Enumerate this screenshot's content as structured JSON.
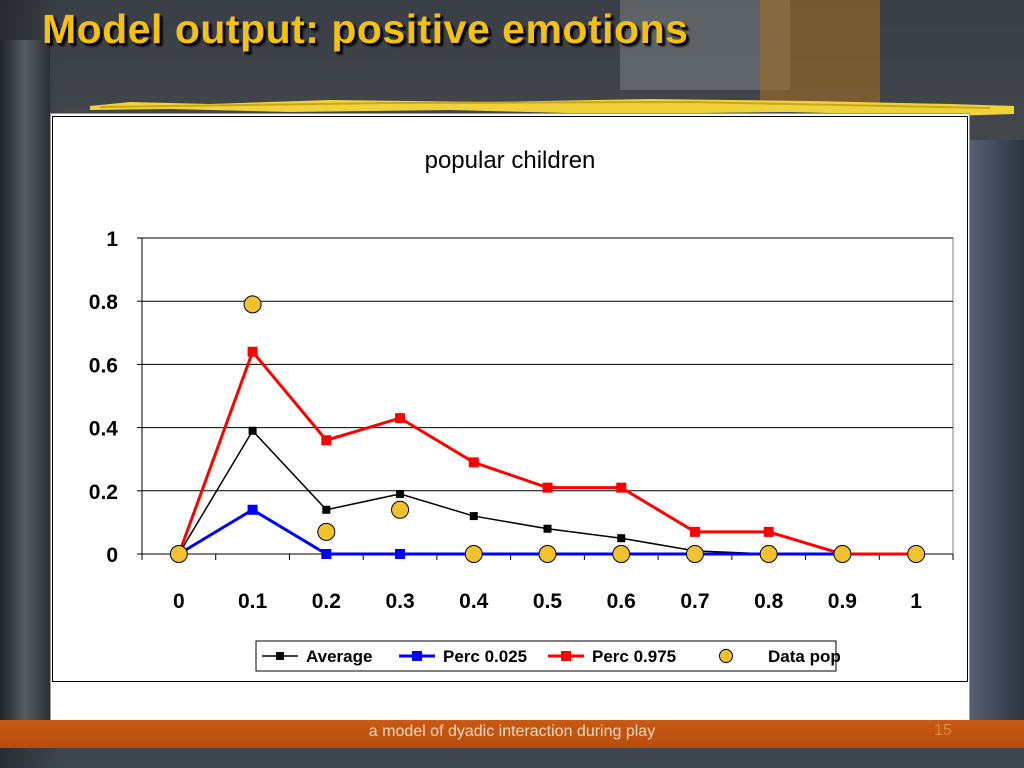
{
  "slide": {
    "title": "Model output: positive emotions",
    "footer": "a model of dyadic interaction during play",
    "page_number": "15"
  },
  "chart_data": {
    "type": "line",
    "title": "popular children",
    "xlabel": "",
    "ylabel": "",
    "x": [
      "0",
      "0.1",
      "0.2",
      "0.3",
      "0.4",
      "0.5",
      "0.6",
      "0.7",
      "0.8",
      "0.9",
      "1"
    ],
    "y_ticks": [
      "0",
      "0.2",
      "0.4",
      "0.6",
      "0.8",
      "1"
    ],
    "ylim": [
      0,
      1
    ],
    "grid": "horizontal",
    "legend_position": "bottom",
    "series": [
      {
        "name": "Average",
        "color": "#000000",
        "marker": "square",
        "values": [
          0,
          0.39,
          0.14,
          0.19,
          0.12,
          0.08,
          0.05,
          0.01,
          0,
          0,
          0
        ]
      },
      {
        "name": "Perc 0.025",
        "color": "#0000ff",
        "marker": "square",
        "values": [
          0,
          0.14,
          0,
          0,
          0,
          0,
          0,
          0,
          0,
          0,
          0
        ]
      },
      {
        "name": "Perc 0.975",
        "color": "#ff0000",
        "marker": "square",
        "values": [
          0,
          0.64,
          0.36,
          0.43,
          0.29,
          0.21,
          0.21,
          0.07,
          0.07,
          0,
          0
        ]
      },
      {
        "name": "Data pop",
        "color": "#f2c22e",
        "marker": "circle",
        "line": false,
        "values": [
          0,
          0.79,
          0.07,
          0.14,
          0,
          0,
          0,
          0,
          0,
          0,
          0
        ]
      }
    ]
  }
}
